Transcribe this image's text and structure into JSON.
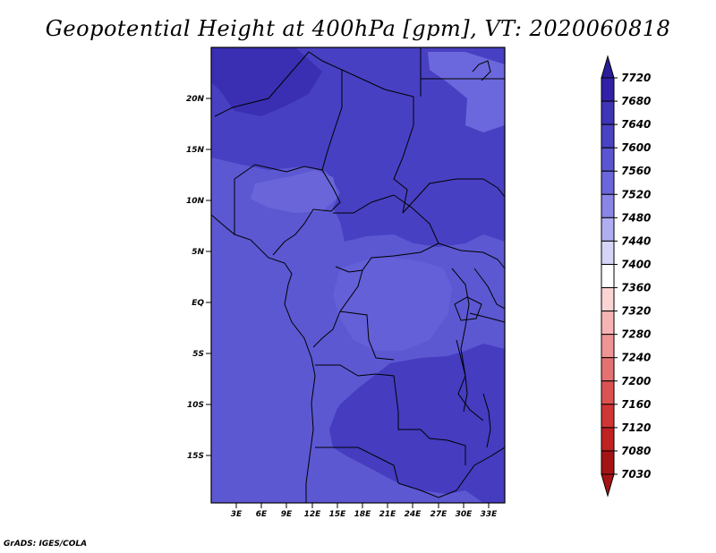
{
  "title": "Geopotential Height at 400hPa [gpm], VT: 2020060818",
  "credit": "GrADS: IGES/COLA",
  "map": {
    "lat_ticks": [
      "20N",
      "15N",
      "10N",
      "5N",
      "EQ",
      "5S",
      "10S",
      "15S"
    ],
    "lon_ticks": [
      "3E",
      "6E",
      "9E",
      "12E",
      "15E",
      "18E",
      "21E",
      "24E",
      "27E",
      "30E",
      "33E"
    ]
  },
  "colorbar": {
    "levels": [
      "7720",
      "7680",
      "7640",
      "7600",
      "7560",
      "7520",
      "7480",
      "7440",
      "7400",
      "7360",
      "7320",
      "7280",
      "7240",
      "7200",
      "7160",
      "7120",
      "7080",
      "7030"
    ],
    "colors": [
      "#2a1e9a",
      "#3320a8",
      "#3d34b6",
      "#4a43c4",
      "#5a55d0",
      "#6a66db",
      "#8a86e6",
      "#b0adf0",
      "#d6d5f8",
      "#ffffff",
      "#fbd4d4",
      "#f6b4b4",
      "#ef9494",
      "#e57272",
      "#db5252",
      "#d03636",
      "#c02222",
      "#a41414"
    ]
  }
}
